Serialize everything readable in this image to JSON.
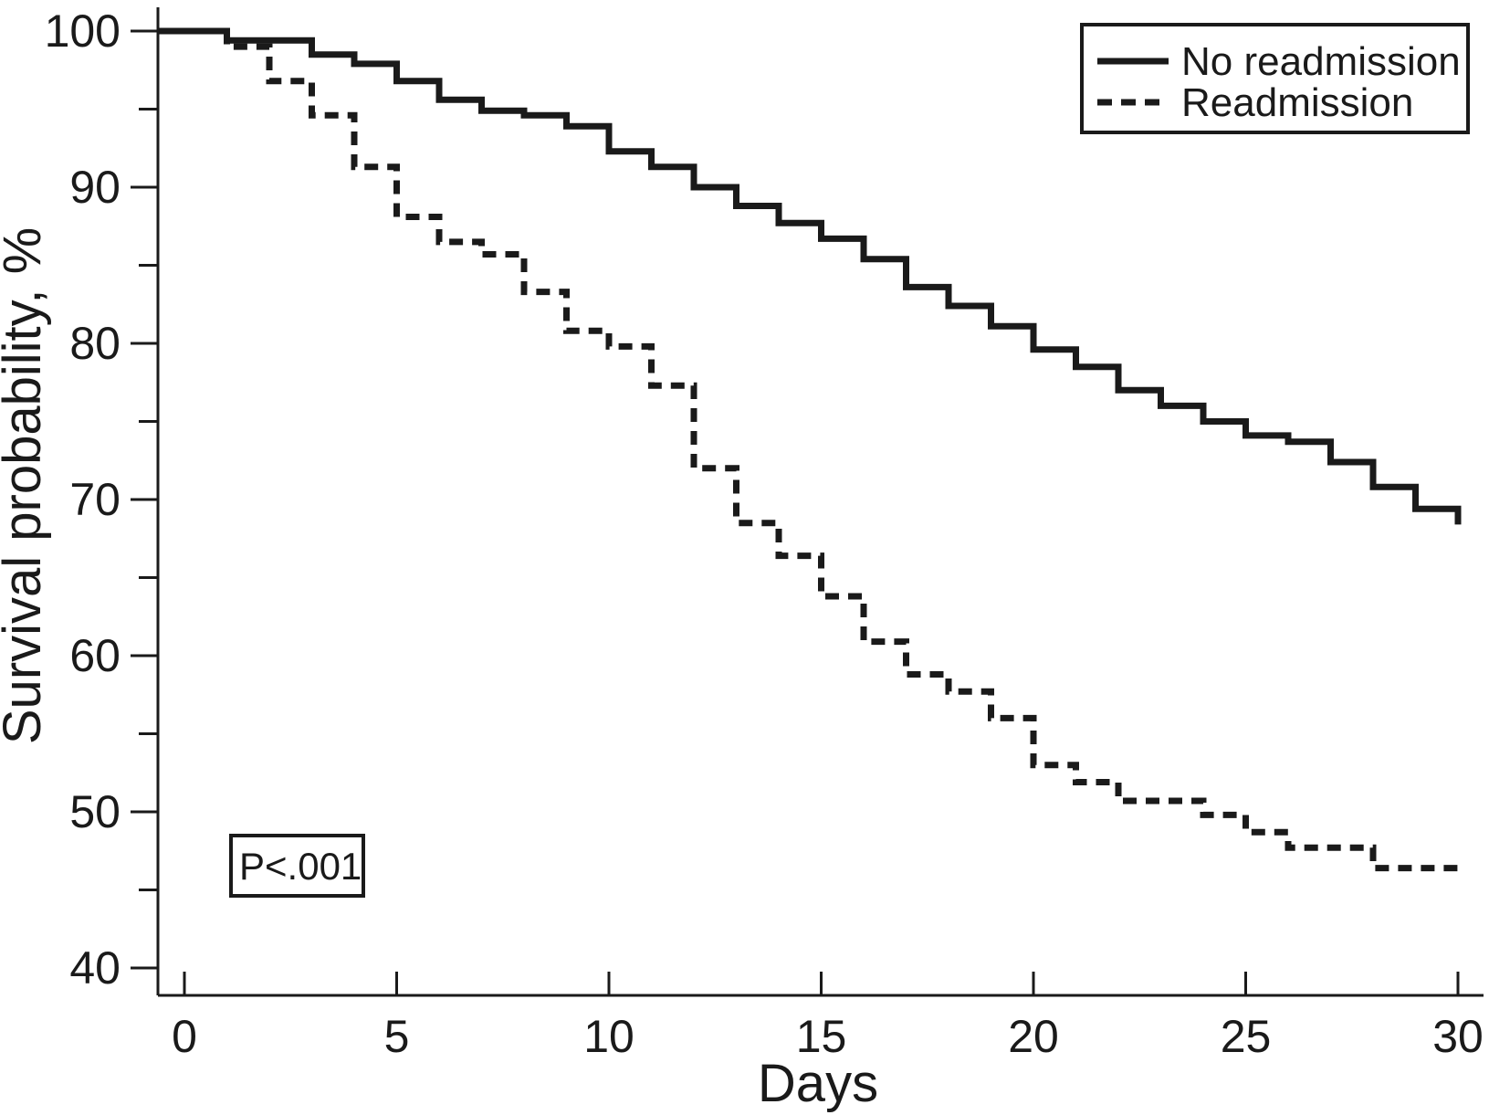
{
  "figure": {
    "p_value_label": "P<.001",
    "xlabel": "Days",
    "ylabel": "Survival probability, %"
  },
  "legend": {
    "items": [
      {
        "label": "No readmission",
        "style": "solid"
      },
      {
        "label": "Readmission",
        "style": "dashed"
      }
    ]
  },
  "chart_data": {
    "type": "line",
    "subtype": "kaplan-meier-step",
    "title": "",
    "xlabel": "Days",
    "ylabel": "Survival probability, %",
    "xlim": [
      0,
      30
    ],
    "ylim": [
      40,
      100
    ],
    "x_ticks": [
      0,
      5,
      10,
      15,
      20,
      25,
      30
    ],
    "y_ticks_major": [
      100,
      90,
      80,
      70,
      60,
      50,
      40
    ],
    "y_ticks_minor": [
      95,
      85,
      75,
      65,
      55,
      45
    ],
    "grid": false,
    "legend_position": "top-right",
    "annotation": {
      "text": "P<.001"
    },
    "series": [
      {
        "name": "No readmission",
        "line_style": "solid",
        "color": "#1a1a1a",
        "steps_day_percent": [
          [
            0,
            100
          ],
          [
            1,
            99.4
          ],
          [
            3,
            98.5
          ],
          [
            4,
            97.9
          ],
          [
            5,
            96.8
          ],
          [
            6,
            95.6
          ],
          [
            7,
            94.9
          ],
          [
            8,
            94.6
          ],
          [
            9,
            93.9
          ],
          [
            10,
            92.3
          ],
          [
            11,
            91.3
          ],
          [
            12,
            90.0
          ],
          [
            13,
            88.8
          ],
          [
            14,
            87.7
          ],
          [
            15,
            86.7
          ],
          [
            16,
            85.4
          ],
          [
            17,
            83.6
          ],
          [
            18,
            82.4
          ],
          [
            19,
            81.1
          ],
          [
            20,
            79.6
          ],
          [
            21,
            78.5
          ],
          [
            22,
            77.0
          ],
          [
            23,
            76.0
          ],
          [
            24,
            75.0
          ],
          [
            25,
            74.1
          ],
          [
            26,
            73.7
          ],
          [
            27,
            72.4
          ],
          [
            28,
            70.8
          ],
          [
            29,
            69.4
          ],
          [
            30,
            68.4
          ]
        ],
        "end_day": 30
      },
      {
        "name": "Readmission",
        "line_style": "dashed",
        "color": "#1a1a1a",
        "steps_day_percent": [
          [
            0,
            100
          ],
          [
            1,
            99.0
          ],
          [
            2,
            96.8
          ],
          [
            3,
            94.6
          ],
          [
            4,
            91.3
          ],
          [
            5,
            88.1
          ],
          [
            6,
            86.5
          ],
          [
            7,
            85.7
          ],
          [
            8,
            83.3
          ],
          [
            9,
            80.8
          ],
          [
            10,
            79.8
          ],
          [
            11,
            77.3
          ],
          [
            12,
            72.0
          ],
          [
            13,
            68.5
          ],
          [
            14,
            66.4
          ],
          [
            15,
            63.8
          ],
          [
            16,
            60.9
          ],
          [
            17,
            58.8
          ],
          [
            18,
            57.7
          ],
          [
            19,
            56.0
          ],
          [
            20,
            53.0
          ],
          [
            21,
            51.9
          ],
          [
            22,
            50.7
          ],
          [
            24,
            49.8
          ],
          [
            25,
            48.7
          ],
          [
            26,
            47.7
          ],
          [
            28,
            46.4
          ]
        ],
        "end_day": 30
      }
    ]
  }
}
